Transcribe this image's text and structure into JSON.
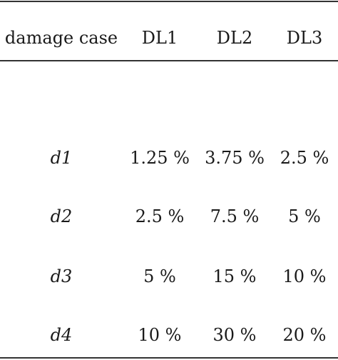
{
  "table": {
    "headers": [
      "damage case",
      "DL1",
      "DL2",
      "DL3"
    ],
    "rows": [
      {
        "case": "d1",
        "dl1": "1.25 %",
        "dl2": "3.75 %",
        "dl3": "2.5 %"
      },
      {
        "case": "d2",
        "dl1": "2.5 %",
        "dl2": "7.5 %",
        "dl3": "5 %"
      },
      {
        "case": "d3",
        "dl1": "5 %",
        "dl2": "15 %",
        "dl3": "10 %"
      },
      {
        "case": "d4",
        "dl1": "10 %",
        "dl2": "30 %",
        "dl3": "20 %"
      }
    ]
  }
}
